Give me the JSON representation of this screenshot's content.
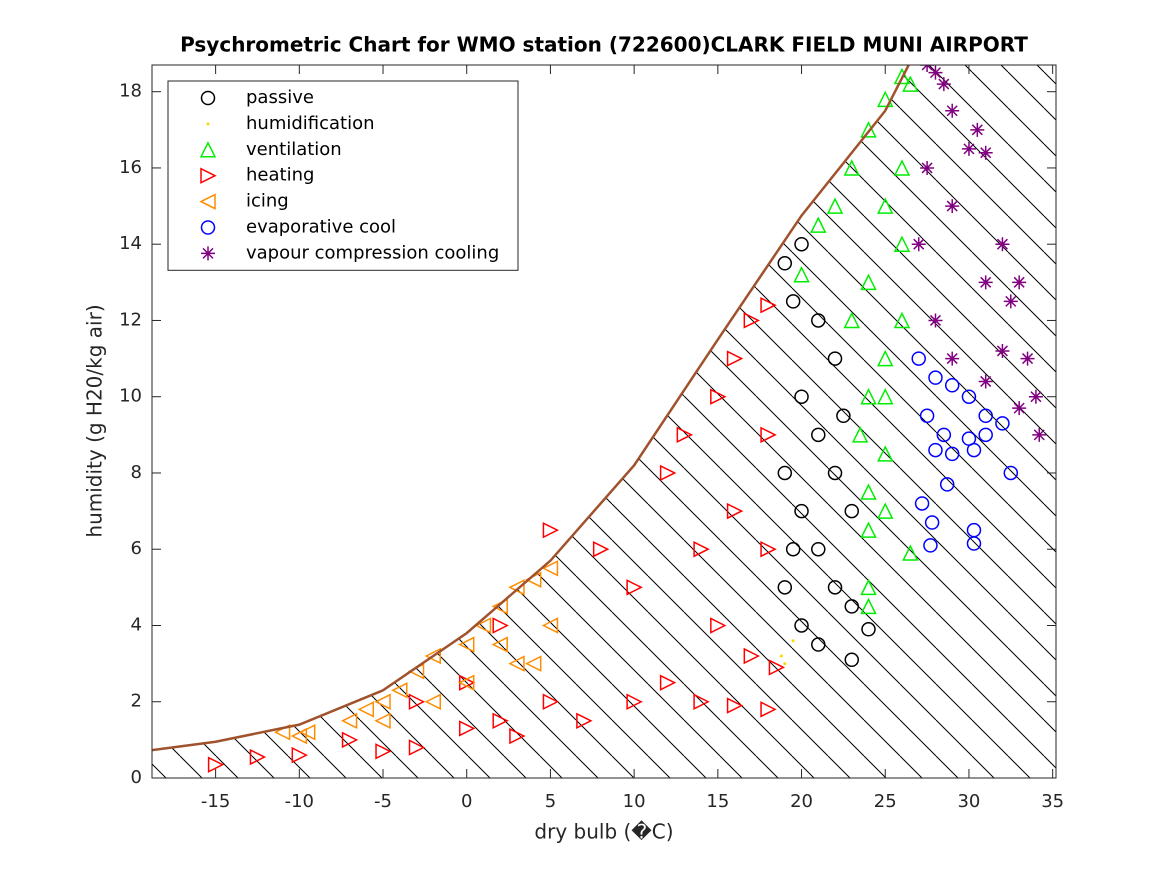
{
  "chart_data": {
    "type": "scatter",
    "title": "Psychrometric Chart for WMO station (722600)CLARK FIELD MUNI AIRPORT",
    "xlabel": "dry bulb (�C)",
    "ylabel": "humidity (g H20/kg air)",
    "xlim": [
      -18.8,
      35.2
    ],
    "ylim": [
      0,
      18.7
    ],
    "xticks": [
      -15,
      -10,
      -5,
      0,
      5,
      10,
      15,
      20,
      25,
      30,
      35
    ],
    "yticks": [
      0,
      2,
      4,
      6,
      8,
      10,
      12,
      14,
      16,
      18
    ],
    "legend": "upper-left",
    "saturation": {
      "color": "#a0522d",
      "x": [
        -18.8,
        -15,
        -10,
        -5,
        0,
        5,
        10,
        15,
        20,
        25,
        26.4
      ],
      "values": [
        0.73,
        0.95,
        1.4,
        2.3,
        3.8,
        5.7,
        8.2,
        11.5,
        14.75,
        17.5,
        18.7
      ]
    },
    "series": [
      {
        "name": "passive",
        "color": "#000000",
        "marker": "circle",
        "x": [
          19,
          20,
          21,
          22,
          20,
          21,
          19,
          22,
          20,
          23,
          21,
          19,
          22,
          23,
          20,
          21,
          23,
          24,
          19.5,
          22.5,
          19.5
        ],
        "values": [
          13.5,
          14,
          12,
          11,
          10,
          9,
          8,
          8,
          7,
          7,
          6,
          5,
          5,
          4.5,
          4,
          3.5,
          3.1,
          3.9,
          12.5,
          9.5,
          6
        ]
      },
      {
        "name": "humidification",
        "color": "#ffd700",
        "marker": "dot",
        "x": [
          19,
          19.5,
          18.8
        ],
        "values": [
          3,
          3.6,
          3.2
        ]
      },
      {
        "name": "ventilation",
        "color": "#00ee00",
        "marker": "triangle-up",
        "x": [
          26,
          26.5,
          25,
          24,
          23,
          22,
          21,
          20,
          25,
          26,
          24,
          23,
          25,
          24,
          23.5,
          25,
          24,
          25,
          24,
          24,
          24,
          26.5,
          26,
          26,
          25
        ],
        "values": [
          18.4,
          18.2,
          17.8,
          17,
          16,
          15,
          14.5,
          13.2,
          15,
          14,
          13,
          12,
          11,
          10,
          9,
          8.5,
          7.5,
          7,
          6.5,
          5,
          4.5,
          5.9,
          12,
          16,
          10
        ]
      },
      {
        "name": "heating",
        "color": "#ff0000",
        "marker": "triangle-right",
        "x": [
          -15,
          -12.5,
          -10,
          -7,
          -5,
          -3,
          0,
          2,
          3,
          5,
          7,
          10,
          12,
          14,
          16,
          18,
          18.5,
          17,
          15,
          10,
          8,
          5,
          12,
          13,
          15,
          16,
          17,
          18,
          18,
          16,
          14,
          2,
          0,
          -3,
          18
        ],
        "values": [
          0.35,
          0.55,
          0.6,
          1,
          0.7,
          0.8,
          1.3,
          1.5,
          1.1,
          2,
          1.5,
          2,
          2.5,
          2,
          1.9,
          1.8,
          2.9,
          3.2,
          4,
          5,
          6,
          6.5,
          8,
          9,
          10,
          11,
          12,
          12.4,
          9,
          7,
          6,
          4,
          2.5,
          2,
          6
        ]
      },
      {
        "name": "icing",
        "color": "#ff8c00",
        "marker": "triangle-left",
        "x": [
          -11,
          -10,
          -9.5,
          -7,
          -6,
          -5,
          -4,
          -3,
          -2,
          0,
          1,
          2,
          3,
          4,
          5,
          5,
          3,
          0,
          -2,
          -5,
          2,
          4
        ],
        "values": [
          1.2,
          1.1,
          1.2,
          1.5,
          1.8,
          2,
          2.3,
          2.8,
          3.2,
          3.5,
          4,
          4.5,
          5,
          5.2,
          5.5,
          4,
          3,
          2.5,
          2,
          1.5,
          3.5,
          3
        ]
      },
      {
        "name": "evaporative cool",
        "color": "#0000ff",
        "marker": "circle",
        "x": [
          27,
          28,
          29,
          30,
          31,
          32,
          27.5,
          28.5,
          29,
          30,
          30.3,
          32.5,
          28.7,
          27.2,
          27.8,
          30.3,
          27.7,
          30.3,
          31,
          28
        ],
        "values": [
          11,
          10.5,
          10.3,
          10,
          9.5,
          9.3,
          9.5,
          9,
          8.5,
          8.9,
          8.6,
          8,
          7.7,
          7.2,
          6.7,
          6.5,
          6.1,
          6.15,
          9,
          8.6
        ]
      },
      {
        "name": "vapour compression cooling",
        "color": "#800080",
        "marker": "asterisk",
        "x": [
          27.5,
          28.5,
          29,
          30,
          31,
          32,
          33,
          32.5,
          33.5,
          34,
          34.2,
          33,
          31,
          29,
          28,
          27,
          27.5,
          29,
          31,
          32,
          30.5,
          28
        ],
        "values": [
          18.7,
          18.2,
          17.5,
          16.5,
          16.4,
          14,
          13,
          12.5,
          11,
          10,
          9,
          9.7,
          10.4,
          11,
          12,
          14,
          16,
          15,
          13,
          11.2,
          17,
          18.5
        ]
      }
    ]
  }
}
